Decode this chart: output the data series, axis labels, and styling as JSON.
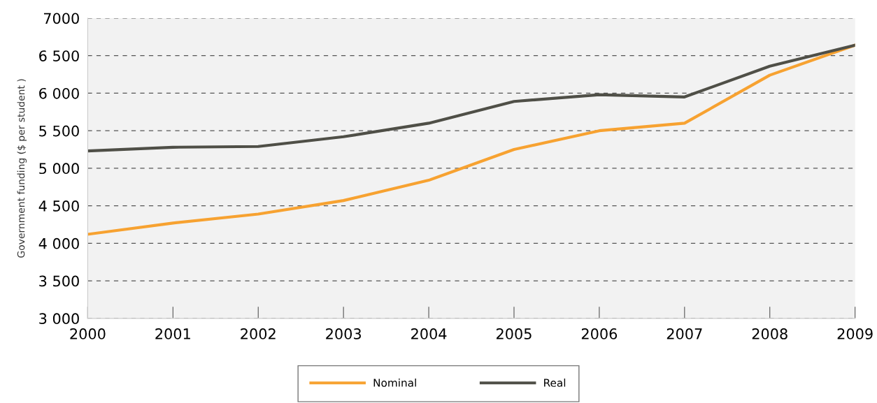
{
  "chart_data": {
    "type": "line",
    "ylabel": "Government funding ($ per student )",
    "x": [
      2000,
      2001,
      2002,
      2003,
      2004,
      2005,
      2006,
      2007,
      2008,
      2009
    ],
    "series": [
      {
        "name": "Nominal",
        "color": "#f7a231",
        "values": [
          4120,
          4270,
          4390,
          4570,
          4840,
          5250,
          5500,
          5600,
          6240,
          6640
        ]
      },
      {
        "name": "Real",
        "color": "#4f4f47",
        "values": [
          5230,
          5280,
          5290,
          5420,
          5600,
          5890,
          5980,
          5950,
          6360,
          6640
        ]
      }
    ],
    "xlim": [
      2000,
      2009
    ],
    "xticks": [
      2000,
      2001,
      2002,
      2003,
      2004,
      2005,
      2006,
      2007,
      2008,
      2009
    ],
    "ylim": [
      3000,
      7000
    ],
    "yticks": [
      {
        "value": 3000,
        "label": "3 000"
      },
      {
        "value": 3500,
        "label": "3 500"
      },
      {
        "value": 4000,
        "label": "4 000"
      },
      {
        "value": 4500,
        "label": "4 500"
      },
      {
        "value": 5000,
        "label": "5 000"
      },
      {
        "value": 5500,
        "label": "5 500"
      },
      {
        "value": 6000,
        "label": "6 000"
      },
      {
        "value": 6500,
        "label": "6 500"
      },
      {
        "value": 7000,
        "label": "7000"
      }
    ],
    "grid": "y",
    "legend": "bottom",
    "marker": "none",
    "line_style": "solid"
  }
}
